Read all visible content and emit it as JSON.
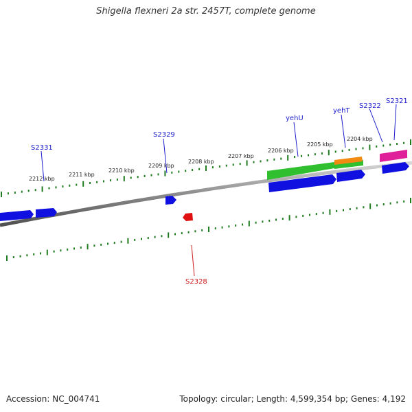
{
  "title": "Shigella flexneri 2a str. 2457T, complete genome",
  "footer": {
    "accession_label": "Accession:",
    "accession": "NC_004741",
    "topology_label": "Topology:",
    "topology": "circular",
    "length_label": "Length:",
    "length": "4,599,354 bp",
    "genes_label": "Genes:",
    "genes": "4,192"
  },
  "colors": {
    "backbone": "#8c8c8c",
    "tick": "#1e7b1e",
    "forward_cds": "#1010e0",
    "reverse_cds": "#e01010",
    "rna_green": "#2fbf2f",
    "rna_orange": "#f08a10",
    "pink": "#e0209a",
    "label_forward": "#1a1acc",
    "label_reverse": "#cc1a1a"
  },
  "scale": {
    "unit": "kbp",
    "tick_labels": [
      "2212 kbp",
      "2211 kbp",
      "2210 kbp",
      "2209 kbp",
      "2208 kbp",
      "2207 kbp",
      "2206 kbp",
      "2205 kbp",
      "2204 kbp"
    ]
  },
  "features": [
    {
      "name": "S2331",
      "strand": "+",
      "kind": "cds"
    },
    {
      "name": "S2329",
      "strand": "+",
      "kind": "cds"
    },
    {
      "name": "S2328",
      "strand": "-",
      "kind": "cds"
    },
    {
      "name": "yehU",
      "strand": "+",
      "kind": "cds"
    },
    {
      "name": "yehT",
      "strand": "+",
      "kind": "cds"
    },
    {
      "name": "S2322",
      "strand": "+",
      "kind": "cds"
    },
    {
      "name": "S2321",
      "strand": "+",
      "kind": "cds"
    }
  ]
}
